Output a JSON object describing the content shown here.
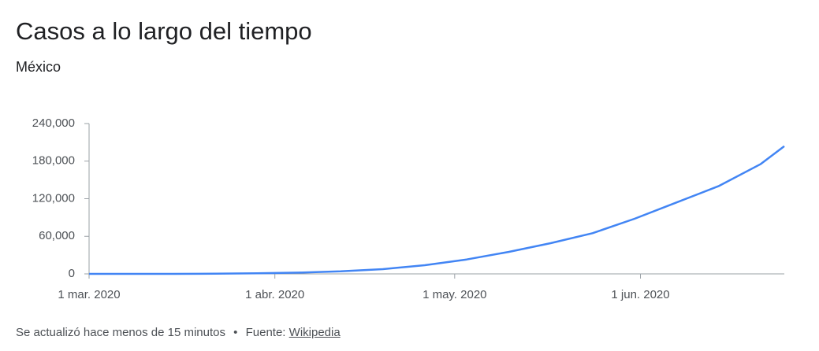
{
  "chart_data": {
    "type": "line",
    "title": "Casos a lo largo del tiempo",
    "subtitle": "México",
    "x": [
      "2020-03-01",
      "2020-03-08",
      "2020-03-15",
      "2020-03-22",
      "2020-03-29",
      "2020-04-05",
      "2020-04-12",
      "2020-04-19",
      "2020-04-26",
      "2020-05-03",
      "2020-05-10",
      "2020-05-17",
      "2020-05-24",
      "2020-05-31",
      "2020-06-07",
      "2020-06-14",
      "2020-06-21",
      "2020-06-25"
    ],
    "series": [
      {
        "name": "Casos",
        "color": "#4285f4",
        "values": [
          0,
          7,
          50,
          300,
          1000,
          2000,
          4000,
          7500,
          13800,
          23000,
          35000,
          49000,
          65000,
          88000,
          114000,
          140000,
          175000,
          204000
        ]
      }
    ],
    "xlim": [
      "2020-03-01",
      "2020-06-25"
    ],
    "xticks": [
      {
        "value": "2020-03-01",
        "label": "1 mar. 2020"
      },
      {
        "value": "2020-04-01",
        "label": "1 abr. 2020"
      },
      {
        "value": "2020-05-01",
        "label": "1 may. 2020"
      },
      {
        "value": "2020-06-01",
        "label": "1 jun. 2020"
      }
    ],
    "ylim": [
      0,
      240000
    ],
    "yticks": [
      0,
      {
        "value": 60000,
        "label": "60,000"
      },
      {
        "value": 120000,
        "label": "120,000"
      },
      {
        "value": 180000,
        "label": "180,000"
      },
      {
        "value": 240000,
        "label": "240,000"
      }
    ],
    "grid": false
  },
  "footer": {
    "updated": "Se actualizó hace menos de 15 minutos",
    "separator": "•",
    "source_label": "Fuente:",
    "source_link": "Wikipedia"
  }
}
